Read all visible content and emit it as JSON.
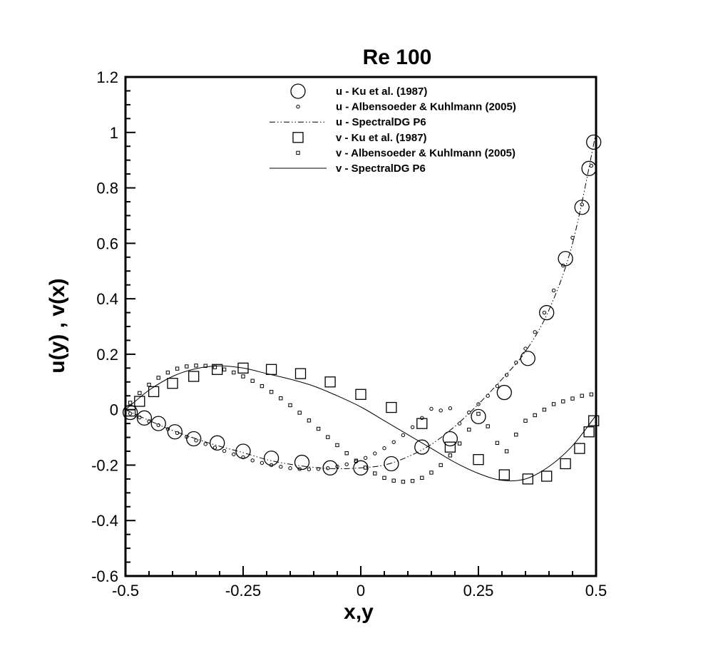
{
  "chart_data": {
    "type": "scatter",
    "title": "Re 100",
    "xlabel": "x,y",
    "ylabel": "u(y) , v(x)",
    "xlim": [
      -0.5,
      0.5
    ],
    "ylim": [
      -0.6,
      1.2
    ],
    "xticks": [
      -0.5,
      -0.25,
      0,
      0.25,
      0.5
    ],
    "xtick_labels": [
      "-0.5",
      "-0.25",
      "0",
      "0.25",
      "0.5"
    ],
    "yticks": [
      -0.6,
      -0.4,
      -0.2,
      0,
      0.2,
      0.4,
      0.6,
      0.8,
      1,
      1.2
    ],
    "ytick_labels": [
      "-0.6",
      "-0.4",
      "-0.2",
      "0",
      "0.2",
      "0.4",
      "0.6",
      "0.8",
      "1",
      "1.2"
    ],
    "grid": false,
    "legend_position": "top-center",
    "series": [
      {
        "name": "u - Ku et al. (1987)",
        "marker": "large-circle",
        "x": [
          -0.49,
          -0.46,
          -0.43,
          -0.395,
          -0.355,
          -0.305,
          -0.25,
          -0.19,
          -0.125,
          -0.065,
          0.0,
          0.065,
          0.13,
          0.19,
          0.25,
          0.305,
          0.355,
          0.395,
          0.435,
          0.47,
          0.485,
          0.495
        ],
        "y": [
          -0.01,
          -0.03,
          -0.05,
          -0.08,
          -0.105,
          -0.12,
          -0.15,
          -0.175,
          -0.19,
          -0.21,
          -0.21,
          -0.195,
          -0.135,
          -0.105,
          -0.025,
          0.062,
          0.185,
          0.35,
          0.545,
          0.73,
          0.87,
          0.965
        ]
      },
      {
        "name": "u - Albensoeder & Kuhlmann (2005)",
        "marker": "small-circle",
        "x": [
          -0.49,
          -0.47,
          -0.45,
          -0.43,
          -0.41,
          -0.39,
          -0.37,
          -0.35,
          -0.33,
          -0.31,
          -0.29,
          -0.27,
          -0.25,
          -0.23,
          -0.21,
          -0.19,
          -0.17,
          -0.15,
          -0.13,
          -0.11,
          -0.09,
          -0.07,
          -0.05,
          -0.03,
          -0.01,
          0.01,
          0.03,
          0.05,
          0.07,
          0.09,
          0.11,
          0.13,
          0.15,
          0.17,
          0.19,
          0.21,
          0.23,
          0.25,
          0.27,
          0.29,
          0.31,
          0.33,
          0.35,
          0.37,
          0.39,
          0.41,
          0.43,
          0.45,
          0.47,
          0.49
        ],
        "y": [
          -0.014,
          -0.028,
          -0.042,
          -0.056,
          -0.07,
          -0.084,
          -0.098,
          -0.111,
          -0.124,
          -0.137,
          -0.149,
          -0.161,
          -0.172,
          -0.183,
          -0.192,
          -0.2,
          -0.206,
          -0.211,
          -0.214,
          -0.215,
          -0.214,
          -0.211,
          -0.205,
          -0.197,
          -0.187,
          -0.174,
          -0.158,
          -0.139,
          -0.117,
          -0.092,
          -0.063,
          -0.03,
          0.003,
          -0.003,
          0.005,
          -0.05,
          -0.01,
          0.02,
          0.05,
          0.085,
          0.125,
          0.17,
          0.22,
          0.28,
          0.35,
          0.43,
          0.52,
          0.62,
          0.74,
          0.88
        ]
      },
      {
        "name": "u - SpectralDG P6",
        "marker": "dash-dot-line",
        "x": [
          -0.5,
          -0.45,
          -0.4,
          -0.35,
          -0.3,
          -0.25,
          -0.2,
          -0.15,
          -0.1,
          -0.05,
          0.0,
          0.05,
          0.1,
          0.15,
          0.2,
          0.25,
          0.3,
          0.35,
          0.4,
          0.45,
          0.5
        ],
        "y": [
          0.0,
          -0.039,
          -0.075,
          -0.105,
          -0.132,
          -0.155,
          -0.18,
          -0.197,
          -0.208,
          -0.213,
          -0.21,
          -0.2,
          -0.17,
          -0.125,
          -0.06,
          0.02,
          0.11,
          0.21,
          0.36,
          0.6,
          1.0
        ]
      },
      {
        "name": "v - Ku et al. (1987)",
        "marker": "large-square",
        "x": [
          -0.49,
          -0.47,
          -0.44,
          -0.4,
          -0.355,
          -0.305,
          -0.25,
          -0.19,
          -0.128,
          -0.065,
          0.0,
          0.065,
          0.13,
          0.19,
          0.25,
          0.305,
          0.355,
          0.395,
          0.435,
          0.465,
          0.485,
          0.495
        ],
        "y": [
          -0.005,
          0.03,
          0.065,
          0.095,
          0.12,
          0.145,
          0.15,
          0.145,
          0.13,
          0.1,
          0.055,
          0.008,
          -0.05,
          -0.135,
          -0.18,
          -0.235,
          -0.25,
          -0.24,
          -0.195,
          -0.14,
          -0.08,
          -0.04
        ]
      },
      {
        "name": "v - Albensoeder & Kuhlmann (2005)",
        "marker": "small-square",
        "x": [
          -0.49,
          -0.47,
          -0.45,
          -0.43,
          -0.41,
          -0.39,
          -0.37,
          -0.35,
          -0.33,
          -0.31,
          -0.29,
          -0.27,
          -0.25,
          -0.23,
          -0.21,
          -0.19,
          -0.17,
          -0.15,
          -0.13,
          -0.11,
          -0.09,
          -0.07,
          -0.05,
          -0.03,
          -0.01,
          0.01,
          0.03,
          0.05,
          0.07,
          0.09,
          0.11,
          0.13,
          0.15,
          0.17,
          0.19,
          0.21,
          0.23,
          0.25,
          0.27,
          0.29,
          0.31,
          0.33,
          0.35,
          0.37,
          0.39,
          0.41,
          0.43,
          0.45,
          0.47,
          0.49
        ],
        "y": [
          0.025,
          0.06,
          0.09,
          0.115,
          0.134,
          0.148,
          0.156,
          0.159,
          0.158,
          0.153,
          0.145,
          0.134,
          0.12,
          0.104,
          0.085,
          0.064,
          0.041,
          0.016,
          -0.011,
          -0.039,
          -0.069,
          -0.099,
          -0.128,
          -0.157,
          -0.184,
          -0.209,
          -0.23,
          -0.246,
          -0.256,
          -0.26,
          -0.257,
          -0.246,
          -0.227,
          -0.2,
          -0.165,
          -0.122,
          -0.072,
          -0.015,
          -0.06,
          -0.12,
          -0.15,
          -0.09,
          -0.04,
          -0.02,
          0.0,
          0.02,
          0.03,
          0.04,
          0.05,
          0.055
        ]
      },
      {
        "name": "v - SpectralDG P6",
        "marker": "solid-line",
        "x": [
          -0.5,
          -0.45,
          -0.4,
          -0.35,
          -0.3,
          -0.25,
          -0.2,
          -0.15,
          -0.1,
          -0.05,
          0.0,
          0.05,
          0.1,
          0.15,
          0.2,
          0.25,
          0.3,
          0.35,
          0.4,
          0.45,
          0.5
        ],
        "y": [
          0.0,
          0.07,
          0.12,
          0.148,
          0.158,
          0.15,
          0.13,
          0.11,
          0.085,
          0.05,
          0.01,
          -0.04,
          -0.09,
          -0.14,
          -0.19,
          -0.23,
          -0.255,
          -0.25,
          -0.205,
          -0.13,
          -0.02
        ]
      }
    ]
  }
}
